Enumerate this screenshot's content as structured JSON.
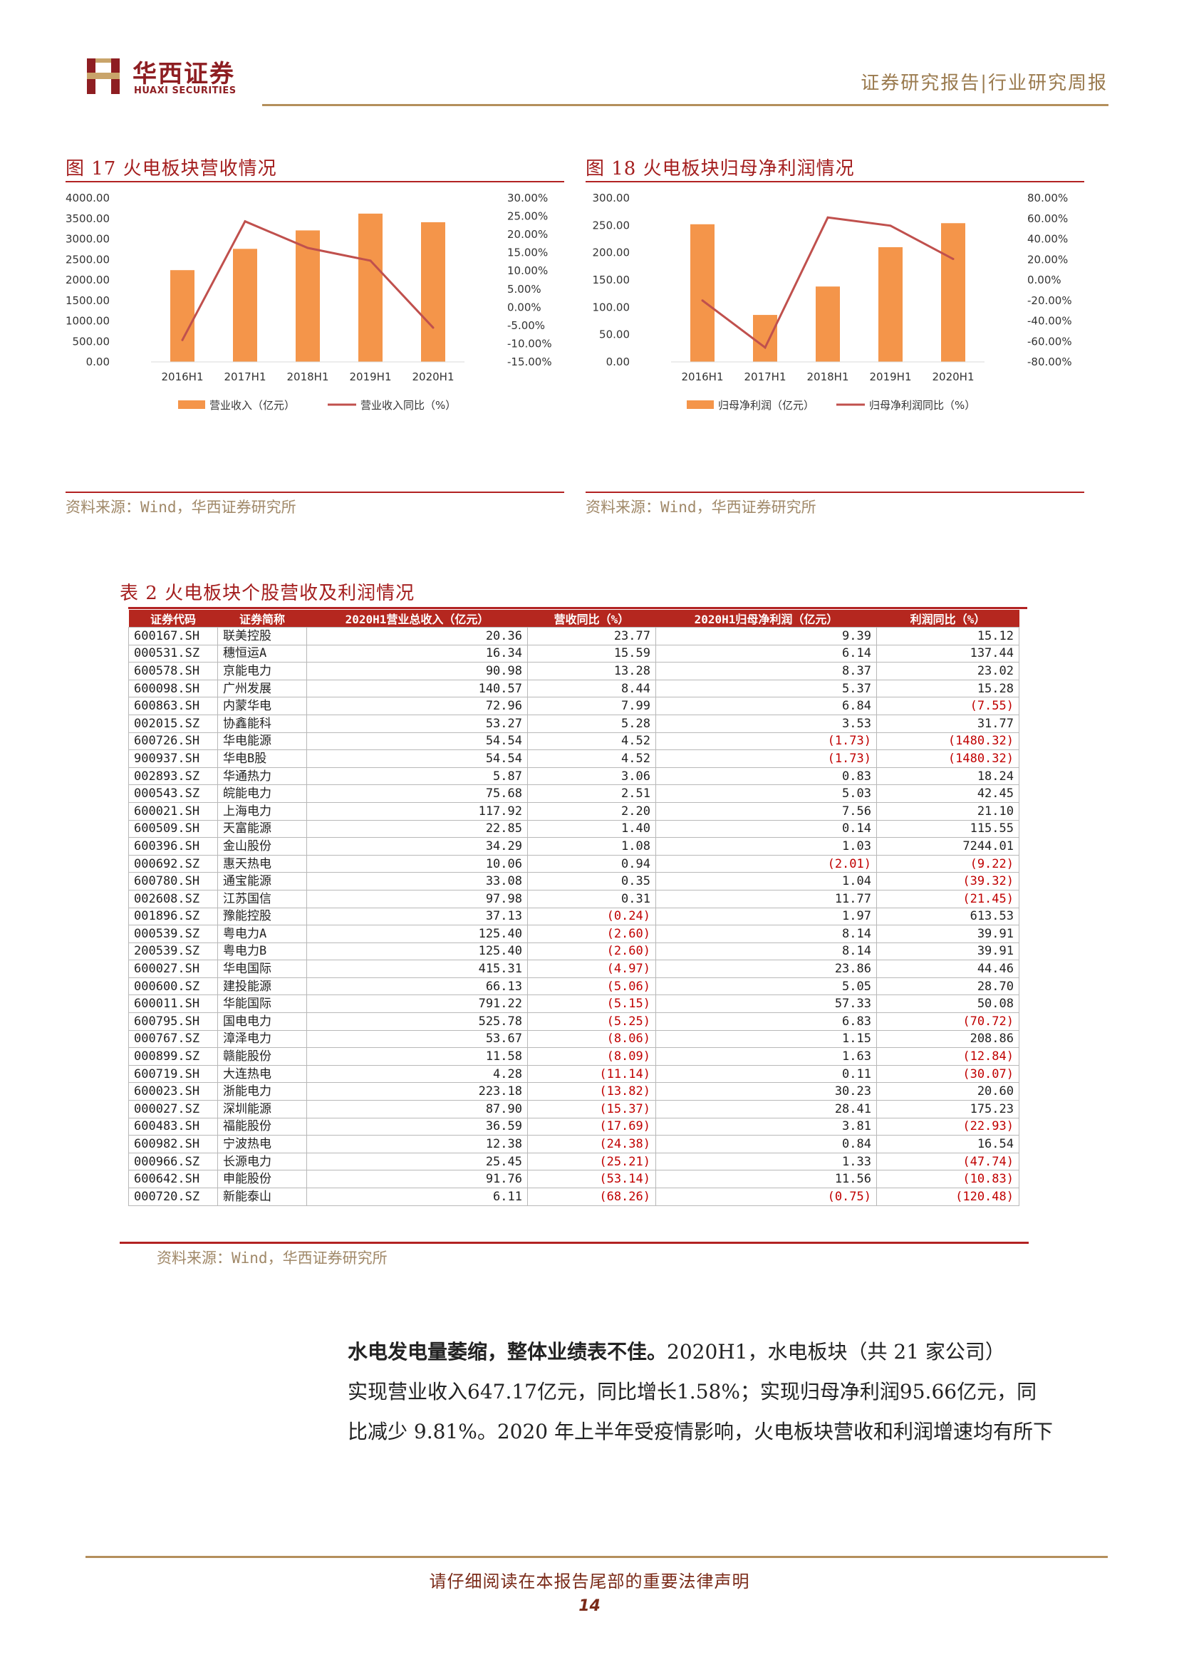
{
  "header": {
    "logo_cn": "华西证券",
    "logo_en": "HUAXI SECURITIES",
    "report_type": "证券研究报告|行业研究周报",
    "brand_color": "#8e1e22",
    "accent_color": "#b48f5c"
  },
  "figure17": {
    "caption": "图 17  火电板块营收情况",
    "source": "资料来源：Wind，华西证券研究所"
  },
  "figure18": {
    "caption": "图 18  火电板块归母净利润情况",
    "source": "资料来源：Wind，华西证券研究所"
  },
  "chart_data": [
    {
      "type": "bar",
      "categories": [
        "2016H1",
        "2017H1",
        "2018H1",
        "2019H1",
        "2020H1"
      ],
      "series": [
        {
          "name": "营业收入（亿元）",
          "type": "bar",
          "axis": "left",
          "color": "#f4954a",
          "values": [
            2240,
            2760,
            3210,
            3620,
            3410
          ]
        },
        {
          "name": "营业收入同比（%）",
          "type": "line",
          "axis": "right",
          "color": "#c0504d",
          "values": [
            -9.0,
            23.6,
            16.3,
            12.8,
            -5.6
          ]
        }
      ],
      "y_left": {
        "range": [
          0,
          4000
        ],
        "ticks": [
          "0.00",
          "500.00",
          "1000.00",
          "1500.00",
          "2000.00",
          "2500.00",
          "3000.00",
          "3500.00",
          "4000.00"
        ]
      },
      "y_right": {
        "range": [
          -15,
          30
        ],
        "ticks": [
          "-15.00%",
          "-10.00%",
          "-5.00%",
          "0.00%",
          "5.00%",
          "10.00%",
          "15.00%",
          "20.00%",
          "25.00%",
          "30.00%"
        ]
      },
      "legend": "bottom",
      "grid": false
    },
    {
      "type": "bar",
      "categories": [
        "2016H1",
        "2017H1",
        "2018H1",
        "2019H1",
        "2020H1"
      ],
      "series": [
        {
          "name": "归母净利润（亿元）",
          "type": "bar",
          "axis": "left",
          "color": "#f4954a",
          "values": [
            252,
            86,
            138,
            210,
            254
          ]
        },
        {
          "name": "归母净利润同比（%）",
          "type": "line",
          "axis": "right",
          "color": "#c0504d",
          "values": [
            -20.0,
            -66.0,
            61.0,
            53.0,
            20.5
          ]
        }
      ],
      "y_left": {
        "range": [
          0,
          300
        ],
        "ticks": [
          "0.00",
          "50.00",
          "100.00",
          "150.00",
          "200.00",
          "250.00",
          "300.00"
        ]
      },
      "y_right": {
        "range": [
          -80,
          80
        ],
        "ticks": [
          "-80.00%",
          "-60.00%",
          "-40.00%",
          "-20.00%",
          "0.00%",
          "20.00%",
          "40.00%",
          "60.00%",
          "80.00%"
        ]
      },
      "legend": "bottom",
      "grid": false
    }
  ],
  "table2": {
    "caption": "表 2  火电板块个股营收及利润情况",
    "headers": [
      "证券代码",
      "证券简称",
      "2020H1营业总收入（亿元）",
      "营收同比（%）",
      "2020H1归母净利润（亿元）",
      "利润同比（%）"
    ],
    "rows": [
      [
        "600167.SH",
        "联美控股",
        "20.36",
        "23.77",
        "9.39",
        "15.12"
      ],
      [
        "000531.SZ",
        "穗恒运A",
        "16.34",
        "15.59",
        "6.14",
        "137.44"
      ],
      [
        "600578.SH",
        "京能电力",
        "90.98",
        "13.28",
        "8.37",
        "23.02"
      ],
      [
        "600098.SH",
        "广州发展",
        "140.57",
        "8.44",
        "5.37",
        "15.28"
      ],
      [
        "600863.SH",
        "内蒙华电",
        "72.96",
        "7.99",
        "6.84",
        "(7.55)"
      ],
      [
        "002015.SZ",
        "协鑫能科",
        "53.27",
        "5.28",
        "3.53",
        "31.77"
      ],
      [
        "600726.SH",
        "华电能源",
        "54.54",
        "4.52",
        "(1.73)",
        "(1480.32)"
      ],
      [
        "900937.SH",
        "华电B股",
        "54.54",
        "4.52",
        "(1.73)",
        "(1480.32)"
      ],
      [
        "002893.SZ",
        "华通热力",
        "5.87",
        "3.06",
        "0.83",
        "18.24"
      ],
      [
        "000543.SZ",
        "皖能电力",
        "75.68",
        "2.51",
        "5.03",
        "42.45"
      ],
      [
        "600021.SH",
        "上海电力",
        "117.92",
        "2.20",
        "7.56",
        "21.10"
      ],
      [
        "600509.SH",
        "天富能源",
        "22.85",
        "1.40",
        "0.14",
        "115.55"
      ],
      [
        "600396.SH",
        "金山股份",
        "34.29",
        "1.08",
        "1.03",
        "7244.01"
      ],
      [
        "000692.SZ",
        "惠天热电",
        "10.06",
        "0.94",
        "(2.01)",
        "(9.22)"
      ],
      [
        "600780.SH",
        "通宝能源",
        "33.08",
        "0.35",
        "1.04",
        "(39.32)"
      ],
      [
        "002608.SZ",
        "江苏国信",
        "97.98",
        "0.31",
        "11.77",
        "(21.45)"
      ],
      [
        "001896.SZ",
        "豫能控股",
        "37.13",
        "(0.24)",
        "1.97",
        "613.53"
      ],
      [
        "000539.SZ",
        "粤电力A",
        "125.40",
        "(2.60)",
        "8.14",
        "39.91"
      ],
      [
        "200539.SZ",
        "粤电力B",
        "125.40",
        "(2.60)",
        "8.14",
        "39.91"
      ],
      [
        "600027.SH",
        "华电国际",
        "415.31",
        "(4.97)",
        "23.86",
        "44.46"
      ],
      [
        "000600.SZ",
        "建投能源",
        "66.13",
        "(5.06)",
        "5.05",
        "28.70"
      ],
      [
        "600011.SH",
        "华能国际",
        "791.22",
        "(5.15)",
        "57.33",
        "50.08"
      ],
      [
        "600795.SH",
        "国电电力",
        "525.78",
        "(5.25)",
        "6.83",
        "(70.72)"
      ],
      [
        "000767.SZ",
        "漳泽电力",
        "53.67",
        "(8.06)",
        "1.15",
        "208.86"
      ],
      [
        "000899.SZ",
        "赣能股份",
        "11.58",
        "(8.09)",
        "1.63",
        "(12.84)"
      ],
      [
        "600719.SH",
        "大连热电",
        "4.28",
        "(11.14)",
        "0.11",
        "(30.07)"
      ],
      [
        "600023.SH",
        "浙能电力",
        "223.18",
        "(13.82)",
        "30.23",
        "20.60"
      ],
      [
        "000027.SZ",
        "深圳能源",
        "87.90",
        "(15.37)",
        "28.41",
        "175.23"
      ],
      [
        "600483.SH",
        "福能股份",
        "36.59",
        "(17.69)",
        "3.81",
        "(22.93)"
      ],
      [
        "600982.SH",
        "宁波热电",
        "12.38",
        "(24.38)",
        "0.84",
        "16.54"
      ],
      [
        "000966.SZ",
        "长源电力",
        "25.45",
        "(25.21)",
        "1.33",
        "(47.74)"
      ],
      [
        "600642.SH",
        "申能股份",
        "91.76",
        "(53.14)",
        "11.56",
        "(10.83)"
      ],
      [
        "000720.SZ",
        "新能泰山",
        "6.11",
        "(68.26)",
        "(0.75)",
        "(120.48)"
      ]
    ],
    "source": "资料来源：Wind，华西证券研究所"
  },
  "body": {
    "para_bold": "水电发电量萎缩，整体业绩表不佳。",
    "para_line1": "2020H1，水电板块（共 21 家公司）",
    "para_line2": "实现营业收入647.17亿元，同比增长1.58%；实现归母净利润95.66亿元，同",
    "para_line3": "比减少 9.81%。2020 年上半年受疫情影响，火电板块营收和利润增速均有所下"
  },
  "footer": {
    "disclaimer": "请仔细阅读在本报告尾部的重要法律声明",
    "page_number": "14"
  }
}
